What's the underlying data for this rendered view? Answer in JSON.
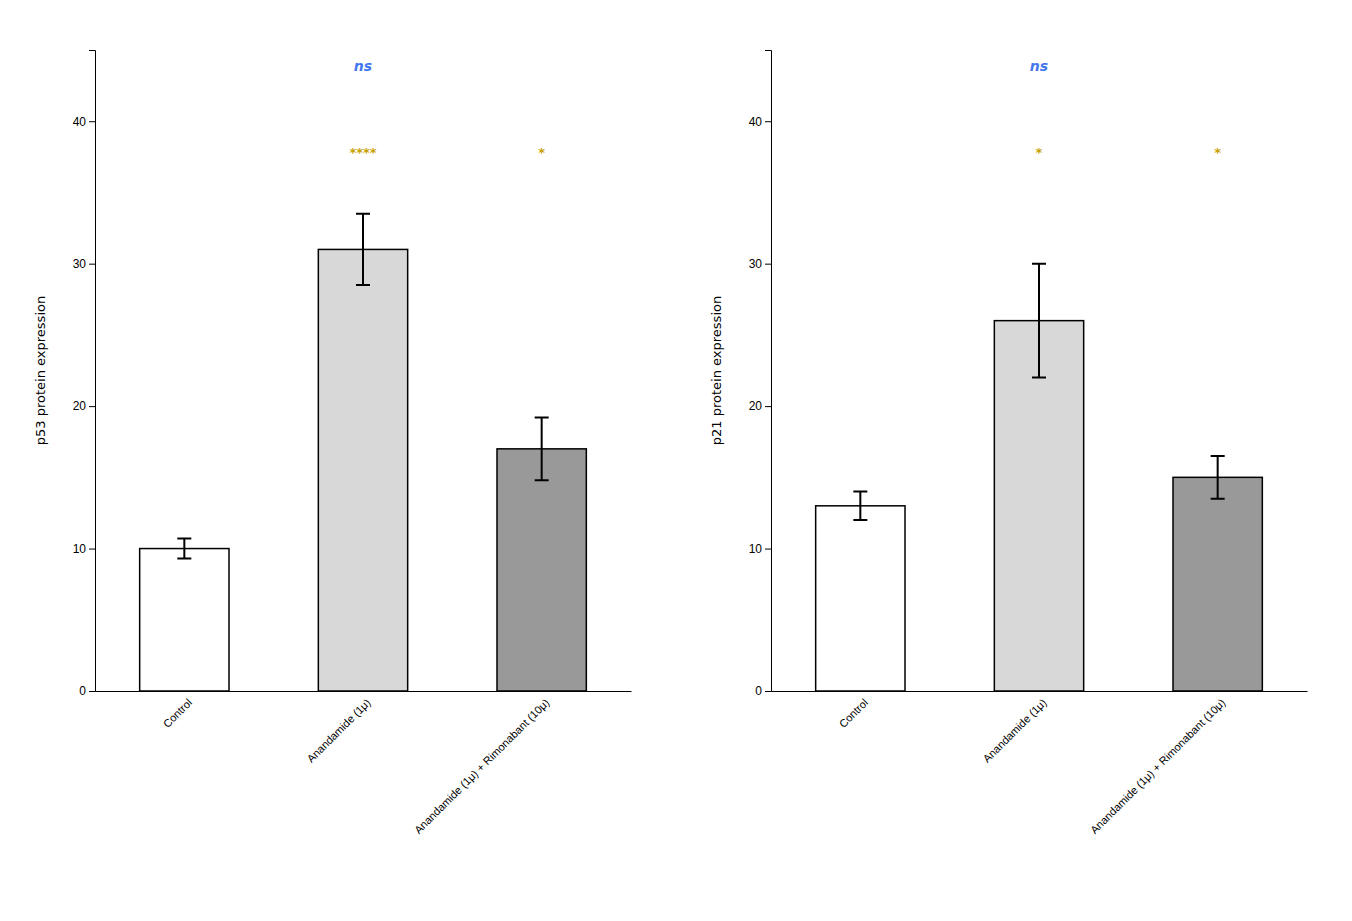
{
  "chart_data": [
    {
      "type": "bar",
      "ylabel": "p53 protein expression",
      "categories": [
        "Control",
        "Anandamide (1μ)",
        "Anandamide (1μ) + Rimonabant (10μ)"
      ],
      "values": [
        10.0,
        31.0,
        17.0
      ],
      "errors": [
        0.7,
        2.5,
        2.2
      ],
      "colors": [
        "#ffffff",
        "#d8d8d8",
        "#999999"
      ],
      "ylim": [
        0,
        45
      ],
      "yticks": [
        0,
        10,
        20,
        30,
        40
      ],
      "grid": false,
      "annotations": [
        {
          "text": "ns",
          "x": "Anandamide (1μ)",
          "y": 43.5,
          "color": "#4477ee"
        },
        {
          "text": "****",
          "x": "Anandamide (1μ)",
          "y": 37.5,
          "color": "#c8a000"
        },
        {
          "text": "*",
          "x": "Anandamide (1μ) + Rimonabant (10μ)",
          "y": 37.5,
          "color": "#c8a000"
        }
      ]
    },
    {
      "type": "bar",
      "ylabel": "p21 protein expression",
      "categories": [
        "Control",
        "Anandamide (1μ)",
        "Anandamide (1μ) + Rimonabant (10μ)"
      ],
      "values": [
        13.0,
        26.0,
        15.0
      ],
      "errors": [
        1.0,
        4.0,
        1.5
      ],
      "colors": [
        "#ffffff",
        "#d8d8d8",
        "#999999"
      ],
      "ylim": [
        0,
        45
      ],
      "yticks": [
        0,
        10,
        20,
        30,
        40
      ],
      "grid": false,
      "annotations": [
        {
          "text": "ns",
          "x": "Anandamide (1μ)",
          "y": 43.5,
          "color": "#4477ee"
        },
        {
          "text": "*",
          "x": "Anandamide (1μ)",
          "y": 37.5,
          "color": "#c8a000"
        },
        {
          "text": "*",
          "x": "Anandamide (1μ) + Rimonabant (10μ)",
          "y": 37.5,
          "color": "#c8a000"
        }
      ]
    }
  ]
}
